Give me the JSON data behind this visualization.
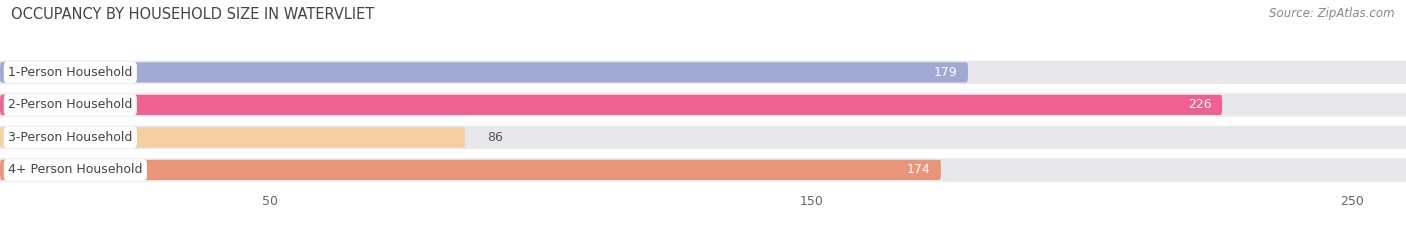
{
  "title": "OCCUPANCY BY HOUSEHOLD SIZE IN WATERVLIET",
  "source": "Source: ZipAtlas.com",
  "categories": [
    "1-Person Household",
    "2-Person Household",
    "3-Person Household",
    "4+ Person Household"
  ],
  "values": [
    179,
    226,
    86,
    174
  ],
  "bar_colors": [
    "#a0a8d4",
    "#f06090",
    "#f5cfa0",
    "#e8957a"
  ],
  "background_color": "#ffffff",
  "bar_bg_color": "#e8e8ec",
  "row_bg_colors": [
    "#f5f5f8",
    "#f5f5f8",
    "#f5f5f8",
    "#f5f5f8"
  ],
  "xlim": [
    0,
    260
  ],
  "xmin": 0,
  "xticks": [
    50,
    150,
    250
  ],
  "label_colors": [
    "#ffffff",
    "#ffffff",
    "#555555",
    "#ffffff"
  ],
  "title_fontsize": 10.5,
  "source_fontsize": 8.5,
  "tick_fontsize": 9,
  "bar_label_fontsize": 9,
  "category_fontsize": 9
}
